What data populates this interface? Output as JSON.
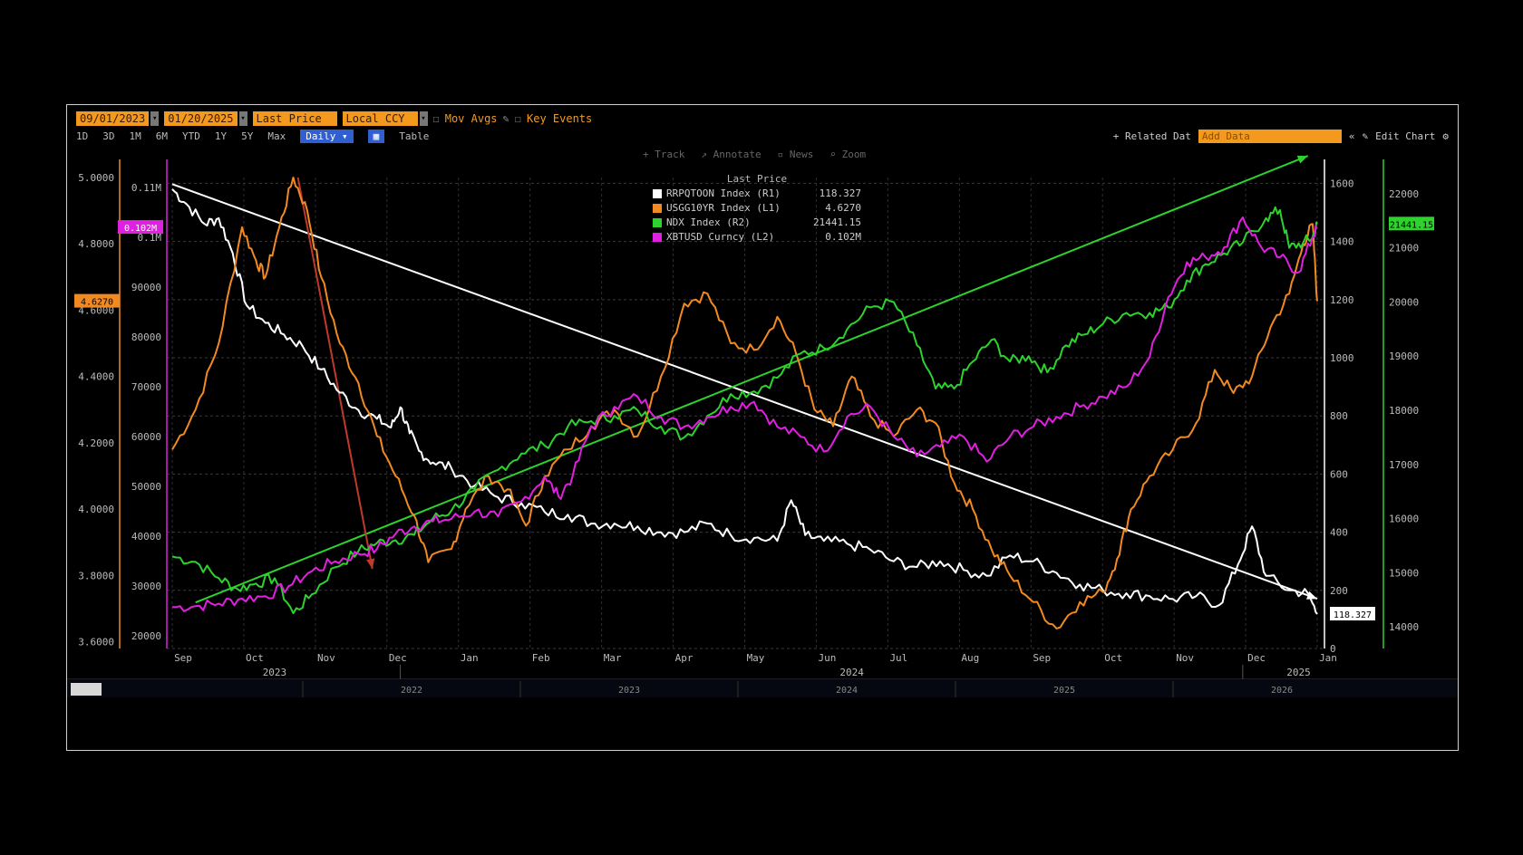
{
  "toolbar": {
    "start_date": "09/01/2023",
    "end_date": "01/20/2025",
    "field": "Last Price",
    "currency": "Local CCY",
    "mov_avgs": "Mov Avgs",
    "key_events": "Key Events",
    "periods": [
      "1D",
      "3D",
      "1M",
      "6M",
      "YTD",
      "1Y",
      "5Y",
      "Max"
    ],
    "frequency": "Daily",
    "table": "Table",
    "related_data": "+ Related Dat",
    "add_data_placeholder": "Add Data",
    "edit_chart": "Edit Chart"
  },
  "controls": [
    "Track",
    "Annotate",
    "News",
    "Zoom"
  ],
  "legend": {
    "header": "Last Price",
    "items": [
      {
        "name": "RRPQTOON Index",
        "axis": "(R1)",
        "value": "118.327",
        "color": "#ffffff"
      },
      {
        "name": "USGG10YR Index",
        "axis": "(L1)",
        "value": "4.6270",
        "color": "#f28a22"
      },
      {
        "name": "NDX Index",
        "axis": "(R2)",
        "value": "21441.15",
        "color": "#2dd22d"
      },
      {
        "name": "XBTUSD Curncy",
        "axis": "(L2)",
        "value": "0.102M",
        "color": "#e020e0"
      }
    ]
  },
  "chart_data": {
    "type": "line",
    "x_axis": {
      "months": [
        "Sep",
        "Oct",
        "Nov",
        "Dec",
        "Jan",
        "Feb",
        "Mar",
        "Apr",
        "May",
        "Jun",
        "Jul",
        "Aug",
        "Sep",
        "Oct",
        "Nov",
        "Dec",
        "Jan"
      ],
      "years": [
        "2023",
        "2024",
        "2025"
      ],
      "lower_years": [
        "2022",
        "2023",
        "2024",
        "2025",
        "2026"
      ]
    },
    "axes": {
      "L1": {
        "label": "USGG10YR",
        "range": [
          3.58,
          5.0
        ],
        "ticks": [
          "5.0000",
          "4.8000",
          "4.6000",
          "4.4000",
          "4.2000",
          "4.0000",
          "3.8000",
          "3.6000"
        ],
        "color": "#f28a22",
        "last_label": "4.6270"
      },
      "L2": {
        "label": "XBTUSD",
        "range": [
          17500,
          112000
        ],
        "ticks": [
          "0.11M",
          "0.1M",
          "90000",
          "80000",
          "70000",
          "60000",
          "50000",
          "40000",
          "30000",
          "20000"
        ],
        "color": "#e020e0",
        "last_label": "0.102M"
      },
      "R1": {
        "label": "RRPQTOON",
        "range": [
          0,
          1620
        ],
        "ticks": [
          "1600",
          "1400",
          "1200",
          "1000",
          "800",
          "600",
          "400",
          "200",
          "0"
        ],
        "color": "#ffffff",
        "last_label": "118.327"
      },
      "R2": {
        "label": "NDX",
        "range": [
          13600,
          22300
        ],
        "ticks": [
          "22000",
          "21000",
          "20000",
          "19000",
          "18000",
          "17000",
          "16000",
          "15000",
          "14000"
        ],
        "color": "#2dd22d",
        "last_label": "21441.15"
      }
    },
    "series": [
      {
        "name": "RRPQTOON Index",
        "axis": "R1",
        "color": "#ffffff",
        "points": [
          [
            0,
            1580
          ],
          [
            0.3,
            1530
          ],
          [
            0.7,
            1460
          ],
          [
            1.0,
            1480
          ],
          [
            1.3,
            1360
          ],
          [
            1.6,
            1180
          ],
          [
            2.0,
            1120
          ],
          [
            2.4,
            1080
          ],
          [
            2.8,
            1040
          ],
          [
            3.2,
            960
          ],
          [
            3.6,
            880
          ],
          [
            4.0,
            820
          ],
          [
            4.4,
            790
          ],
          [
            4.7,
            760
          ],
          [
            4.9,
            830
          ],
          [
            5.1,
            740
          ],
          [
            5.3,
            680
          ],
          [
            5.6,
            640
          ],
          [
            6.0,
            620
          ],
          [
            6.5,
            560
          ],
          [
            7.0,
            520
          ],
          [
            7.5,
            500
          ],
          [
            8.0,
            470
          ],
          [
            8.5,
            460
          ],
          [
            9.0,
            430
          ],
          [
            9.5,
            430
          ],
          [
            10.0,
            420
          ],
          [
            10.5,
            400
          ],
          [
            11.0,
            400
          ],
          [
            11.5,
            430
          ],
          [
            12.0,
            390
          ],
          [
            12.5,
            380
          ],
          [
            13.0,
            370
          ],
          [
            13.3,
            510
          ],
          [
            13.6,
            390
          ],
          [
            14.0,
            370
          ],
          [
            14.5,
            360
          ],
          [
            15.0,
            340
          ],
          [
            15.5,
            300
          ],
          [
            16.0,
            280
          ],
          [
            16.5,
            300
          ],
          [
            17.0,
            270
          ],
          [
            17.5,
            250
          ],
          [
            18.0,
            320
          ],
          [
            18.5,
            300
          ],
          [
            19.0,
            260
          ],
          [
            19.5,
            220
          ],
          [
            20.0,
            200
          ],
          [
            20.5,
            190
          ],
          [
            21.0,
            180
          ],
          [
            21.5,
            170
          ],
          [
            22.0,
            180
          ],
          [
            22.5,
            150
          ],
          [
            22.9,
            290
          ],
          [
            23.2,
            420
          ],
          [
            23.5,
            250
          ],
          [
            24.0,
            200
          ],
          [
            24.4,
            190
          ],
          [
            24.6,
            118.3
          ]
        ]
      },
      {
        "name": "USGG10YR Index",
        "axis": "L1",
        "color": "#f28a22",
        "points": [
          [
            0,
            4.18
          ],
          [
            0.5,
            4.3
          ],
          [
            1.0,
            4.5
          ],
          [
            1.5,
            4.85
          ],
          [
            1.8,
            4.75
          ],
          [
            2.0,
            4.7
          ],
          [
            2.3,
            4.85
          ],
          [
            2.6,
            5.0
          ],
          [
            2.9,
            4.9
          ],
          [
            3.2,
            4.7
          ],
          [
            3.6,
            4.5
          ],
          [
            4.0,
            4.38
          ],
          [
            4.4,
            4.22
          ],
          [
            4.8,
            4.1
          ],
          [
            5.2,
            3.98
          ],
          [
            5.5,
            3.84
          ],
          [
            6.0,
            3.88
          ],
          [
            6.3,
            4.0
          ],
          [
            6.8,
            4.1
          ],
          [
            7.2,
            4.06
          ],
          [
            7.6,
            3.95
          ],
          [
            8.0,
            4.1
          ],
          [
            8.5,
            4.18
          ],
          [
            9.0,
            4.25
          ],
          [
            9.5,
            4.3
          ],
          [
            10.0,
            4.22
          ],
          [
            10.5,
            4.4
          ],
          [
            11.0,
            4.62
          ],
          [
            11.5,
            4.65
          ],
          [
            12.0,
            4.5
          ],
          [
            12.5,
            4.48
          ],
          [
            13.0,
            4.58
          ],
          [
            13.4,
            4.47
          ],
          [
            13.8,
            4.3
          ],
          [
            14.2,
            4.25
          ],
          [
            14.6,
            4.4
          ],
          [
            15.0,
            4.28
          ],
          [
            15.5,
            4.22
          ],
          [
            16.0,
            4.3
          ],
          [
            16.4,
            4.26
          ],
          [
            16.8,
            4.08
          ],
          [
            17.2,
            4.0
          ],
          [
            17.6,
            3.88
          ],
          [
            18.0,
            3.8
          ],
          [
            18.5,
            3.72
          ],
          [
            19.0,
            3.64
          ],
          [
            19.5,
            3.72
          ],
          [
            20.0,
            3.75
          ],
          [
            20.3,
            3.85
          ],
          [
            20.6,
            4.0
          ],
          [
            21.0,
            4.1
          ],
          [
            21.5,
            4.18
          ],
          [
            22.0,
            4.26
          ],
          [
            22.4,
            4.42
          ],
          [
            22.8,
            4.35
          ],
          [
            23.2,
            4.4
          ],
          [
            23.6,
            4.55
          ],
          [
            24.0,
            4.65
          ],
          [
            24.3,
            4.8
          ],
          [
            24.5,
            4.86
          ],
          [
            24.6,
            4.627
          ]
        ]
      },
      {
        "name": "NDX Index",
        "axis": "R2",
        "color": "#2dd22d",
        "points": [
          [
            0,
            15300
          ],
          [
            0.5,
            15200
          ],
          [
            1.0,
            14900
          ],
          [
            1.4,
            14700
          ],
          [
            1.8,
            14800
          ],
          [
            2.2,
            14900
          ],
          [
            2.6,
            14250
          ],
          [
            3.0,
            14600
          ],
          [
            3.5,
            15100
          ],
          [
            4.0,
            15400
          ],
          [
            4.4,
            15550
          ],
          [
            4.8,
            15600
          ],
          [
            5.2,
            15700
          ],
          [
            5.6,
            16000
          ],
          [
            6.0,
            16150
          ],
          [
            6.5,
            16550
          ],
          [
            7.0,
            16900
          ],
          [
            7.5,
            17200
          ],
          [
            8.0,
            17350
          ],
          [
            8.5,
            17700
          ],
          [
            9.0,
            17800
          ],
          [
            9.5,
            17900
          ],
          [
            10.0,
            18000
          ],
          [
            10.5,
            17700
          ],
          [
            11.0,
            17500
          ],
          [
            11.5,
            17900
          ],
          [
            12.0,
            18300
          ],
          [
            12.5,
            18350
          ],
          [
            13.0,
            18600
          ],
          [
            13.5,
            19050
          ],
          [
            14.0,
            19150
          ],
          [
            14.5,
            19500
          ],
          [
            15.0,
            19900
          ],
          [
            15.5,
            20000
          ],
          [
            16.0,
            19200
          ],
          [
            16.4,
            18400
          ],
          [
            16.8,
            18400
          ],
          [
            17.2,
            18900
          ],
          [
            17.6,
            19300
          ],
          [
            18.0,
            18900
          ],
          [
            18.4,
            19000
          ],
          [
            18.8,
            18700
          ],
          [
            19.2,
            19200
          ],
          [
            19.6,
            19400
          ],
          [
            20.0,
            19600
          ],
          [
            20.5,
            19800
          ],
          [
            21.0,
            19800
          ],
          [
            21.4,
            19900
          ],
          [
            21.8,
            20400
          ],
          [
            22.2,
            20700
          ],
          [
            22.6,
            20900
          ],
          [
            23.0,
            21100
          ],
          [
            23.5,
            21550
          ],
          [
            23.8,
            21700
          ],
          [
            24.0,
            21000
          ],
          [
            24.3,
            21100
          ],
          [
            24.5,
            21200
          ],
          [
            24.6,
            21441.15
          ]
        ]
      },
      {
        "name": "XBTUSD Curncy",
        "axis": "L2",
        "color": "#e020e0",
        "points": [
          [
            0,
            25800
          ],
          [
            0.5,
            26000
          ],
          [
            1.0,
            26500
          ],
          [
            1.5,
            27500
          ],
          [
            2.0,
            28000
          ],
          [
            2.5,
            30000
          ],
          [
            3.0,
            33000
          ],
          [
            3.5,
            35000
          ],
          [
            4.0,
            36500
          ],
          [
            4.4,
            37500
          ],
          [
            4.8,
            40500
          ],
          [
            5.2,
            42000
          ],
          [
            5.6,
            43000
          ],
          [
            6.0,
            43500
          ],
          [
            6.5,
            45000
          ],
          [
            7.0,
            44000
          ],
          [
            7.5,
            47000
          ],
          [
            8.0,
            52000
          ],
          [
            8.3,
            48000
          ],
          [
            8.6,
            52000
          ],
          [
            9.0,
            62000
          ],
          [
            9.5,
            66000
          ],
          [
            10.0,
            68000
          ],
          [
            10.5,
            64000
          ],
          [
            11.0,
            62000
          ],
          [
            11.5,
            64000
          ],
          [
            12.0,
            66000
          ],
          [
            12.5,
            67000
          ],
          [
            13.0,
            62000
          ],
          [
            13.5,
            60000
          ],
          [
            14.0,
            57000
          ],
          [
            14.5,
            64000
          ],
          [
            15.0,
            66000
          ],
          [
            15.5,
            60000
          ],
          [
            16.0,
            56000
          ],
          [
            16.5,
            58000
          ],
          [
            17.0,
            60000
          ],
          [
            17.5,
            55000
          ],
          [
            18.0,
            60000
          ],
          [
            18.5,
            62000
          ],
          [
            19.0,
            64000
          ],
          [
            19.5,
            66000
          ],
          [
            20.0,
            68000
          ],
          [
            20.5,
            70000
          ],
          [
            21.0,
            76000
          ],
          [
            21.4,
            88000
          ],
          [
            21.8,
            95000
          ],
          [
            22.2,
            96000
          ],
          [
            22.6,
            98000
          ],
          [
            23.0,
            104000
          ],
          [
            23.4,
            98000
          ],
          [
            23.8,
            96000
          ],
          [
            24.2,
            93000
          ],
          [
            24.5,
            100000
          ],
          [
            24.6,
            102000
          ]
        ]
      }
    ],
    "trendlines": [
      {
        "color": "#ffffff",
        "from": [
          0,
          4.98
        ],
        "to": [
          24.6,
          3.73
        ],
        "axis": "L1"
      },
      {
        "color": "#2dd22d",
        "from": [
          0.5,
          14450
        ],
        "to": [
          24.4,
          22700
        ],
        "axis": "R2"
      },
      {
        "color": "#c0392b",
        "from": [
          2.7,
          5.0
        ],
        "to": [
          4.3,
          3.82
        ],
        "axis": "L1"
      }
    ]
  }
}
